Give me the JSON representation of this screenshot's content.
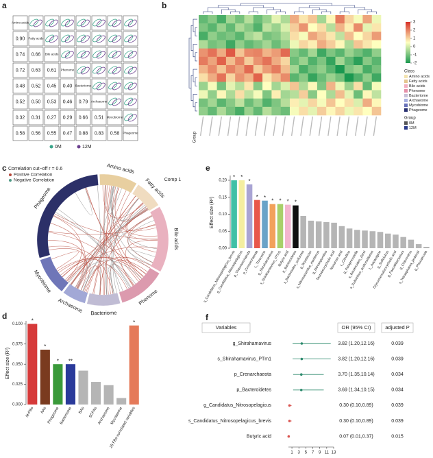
{
  "chart_data": [
    {
      "type": "corr_matrix",
      "panel": "a",
      "variables": [
        "Amino acids",
        "Fatty acids",
        "Bile acids",
        "Phenome",
        "Bacteriome",
        "Archaeome",
        "Mycobiome",
        "Phageome"
      ],
      "values": [
        [
          0.9
        ],
        [
          0.74,
          0.66
        ],
        [
          0.72,
          0.63,
          0.61
        ],
        [
          0.48,
          0.52,
          0.45,
          0.4
        ],
        [
          0.52,
          0.5,
          0.53,
          0.46,
          0.79
        ],
        [
          0.32,
          0.31,
          0.27,
          0.29,
          0.66,
          0.51
        ],
        [
          0.58,
          0.56,
          0.55,
          0.47,
          0.88,
          0.83,
          0.58
        ]
      ],
      "value_labels": [
        [
          "0.90"
        ],
        [
          "0.74",
          "0.66"
        ],
        [
          "0.72",
          "0.63",
          "0.61"
        ],
        [
          "0.48",
          "0.52",
          "0.45",
          "0.40"
        ],
        [
          "0.52",
          "0.50",
          "0.53",
          "0.46",
          "0.79"
        ],
        [
          "0.32",
          "0.31",
          "0.27",
          "0.29",
          "0.66",
          "0.51"
        ],
        [
          "0.58",
          "0.56",
          "0.55",
          "0.47",
          "0.88",
          "0.83",
          "0.58"
        ]
      ],
      "groups": [
        {
          "name": "0M",
          "color": "#3aa58a"
        },
        {
          "name": "12M",
          "color": "#6b3f8e"
        }
      ]
    },
    {
      "type": "heatmap",
      "panel": "b",
      "values": [
        [
          -1.2,
          -0.8,
          -1.5,
          -0.5,
          -1.0,
          -0.3,
          -1.1,
          -0.6,
          0.2,
          -0.4,
          1.5,
          0.8,
          1.2,
          -0.5,
          0.6,
          2.1,
          1.0,
          0.4,
          1.6,
          0.3
        ],
        [
          -0.9,
          -1.3,
          -0.6,
          -1.2,
          -0.4,
          -0.8,
          -1.4,
          -0.2,
          -0.6,
          0.1,
          1.1,
          1.8,
          0.5,
          0.9,
          -0.3,
          1.4,
          0.7,
          1.9,
          0.2,
          0.8
        ],
        [
          -1.5,
          -0.7,
          -1.1,
          -0.9,
          -1.3,
          -0.5,
          -0.2,
          -1.0,
          -0.8,
          -0.3,
          0.9,
          0.4,
          1.6,
          1.2,
          0.8,
          -0.2,
          1.3,
          0.5,
          1.0,
          1.7
        ],
        [
          -0.4,
          -1.0,
          -0.8,
          -1.6,
          -0.7,
          -1.2,
          -0.9,
          -0.5,
          -1.1,
          -0.6,
          0.3,
          1.0,
          0.7,
          1.5,
          1.1,
          0.6,
          -0.4,
          1.2,
          0.8,
          0.5
        ],
        [
          1.8,
          2.2,
          1.5,
          2.5,
          1.2,
          1.9,
          2.0,
          1.4,
          1.7,
          2.3,
          -0.8,
          -1.2,
          -0.5,
          -1.6,
          -0.9,
          -1.3,
          -0.6,
          -1.0,
          -1.4,
          -0.7
        ],
        [
          2.1,
          1.6,
          2.4,
          1.3,
          2.0,
          1.1,
          1.8,
          2.2,
          1.5,
          1.0,
          -1.1,
          -0.6,
          -1.4,
          -0.9,
          -1.7,
          -0.5,
          -1.2,
          -1.8,
          -0.8,
          -1.3
        ],
        [
          1.4,
          1.9,
          1.2,
          2.0,
          1.6,
          2.3,
          1.1,
          1.7,
          2.1,
          1.3,
          -0.5,
          -1.5,
          -1.0,
          -0.7,
          -1.3,
          -2.0,
          -0.9,
          -0.6,
          -1.5,
          -1.0
        ],
        [
          0.9,
          1.5,
          2.2,
          1.0,
          1.8,
          1.4,
          2.4,
          0.8,
          1.3,
          1.9,
          -1.3,
          -0.8,
          -1.7,
          -1.1,
          -0.6,
          -1.0,
          -2.1,
          -1.4,
          -0.7,
          -1.6
        ],
        [
          -0.6,
          0.4,
          -1.0,
          0.2,
          -0.3,
          0.8,
          -0.8,
          0.5,
          -0.5,
          0.1,
          1.2,
          -0.4,
          0.6,
          -0.9,
          1.4,
          0.3,
          -0.6,
          0.9,
          -1.2,
          0.4
        ],
        [
          0.3,
          -0.7,
          0.6,
          -0.4,
          0.9,
          -0.2,
          0.4,
          -0.9,
          0.7,
          -0.5,
          -0.3,
          1.1,
          -0.8,
          0.5,
          -0.4,
          1.3,
          0.2,
          -1.1,
          0.6,
          -0.2
        ],
        [
          -1.0,
          -0.5,
          -1.3,
          -0.8,
          -0.2,
          -1.1,
          -0.6,
          -1.4,
          -0.9,
          -0.3,
          0.7,
          0.2,
          1.0,
          0.4,
          1.2,
          0.5,
          0.9,
          0.1,
          1.5,
          0.6
        ],
        [
          -0.7,
          -1.2,
          -0.4,
          -1.0,
          -1.5,
          -0.6,
          -1.2,
          -0.3,
          -0.8,
          -1.1,
          0.4,
          0.9,
          0.2,
          1.1,
          0.6,
          1.0,
          0.3,
          0.8,
          0.5,
          1.2
        ]
      ],
      "zlim": [
        -2,
        3
      ],
      "zticks": [
        3,
        2,
        1,
        0,
        -1,
        -2
      ],
      "colors": [
        "#1a9850",
        "#ffffbf",
        "#d73027"
      ],
      "class_title": "Class",
      "classes": [
        {
          "name": "Amino acids",
          "color": "#f3e3b0"
        },
        {
          "name": "Fatty acids",
          "color": "#e5c58e"
        },
        {
          "name": "Bile acids",
          "color": "#f2aebf"
        },
        {
          "name": "Phenome",
          "color": "#e58fa8"
        },
        {
          "name": "Bacteriome",
          "color": "#c7c0d8"
        },
        {
          "name": "Archaeome",
          "color": "#a6afe0"
        },
        {
          "name": "Mycobiome",
          "color": "#6770b8"
        },
        {
          "name": "Phageome",
          "color": "#283070"
        }
      ],
      "group_title": "Group",
      "groups": [
        {
          "name": "0M",
          "color": "#555555"
        },
        {
          "name": "12M",
          "color": "#2a3a8a"
        }
      ]
    },
    {
      "type": "chord",
      "panel": "c",
      "title": "Correlation cut−off r = 0.6",
      "subtitle": "Comp 1",
      "legend": [
        {
          "name": "Positive Correlation",
          "color": "#b5473a"
        },
        {
          "name": "Negative Correlation",
          "color": "#4f9a86"
        }
      ],
      "sectors": [
        {
          "name": "Amino acids",
          "size": 8,
          "color": "#e8cfa0"
        },
        {
          "name": "Fatty acids",
          "size": 6,
          "color": "#f0dcc0"
        },
        {
          "name": "Bile acids",
          "size": 14,
          "color": "#e9b1bf"
        },
        {
          "name": "Phenome",
          "size": 10,
          "color": "#dc9aae"
        },
        {
          "name": "Bacteriome",
          "size": 7,
          "color": "#c0bcd4"
        },
        {
          "name": "Archaeome",
          "size": 5,
          "color": "#a2a8d6"
        },
        {
          "name": "Mycobiome",
          "size": 8,
          "color": "#6f76b8"
        },
        {
          "name": "Phageome",
          "size": 24,
          "color": "#2c3068"
        }
      ]
    },
    {
      "type": "bar",
      "panel": "d",
      "ylabel": "Effect size (R²)",
      "categories": [
        "M-FBs",
        "AAs",
        "Phageome",
        "Bacteriome",
        "BAs",
        "SCFAs",
        "Archaeome",
        "Mycobiome",
        "25 FBs-correlated variables"
      ],
      "values": [
        0.1,
        0.068,
        0.05,
        0.05,
        0.042,
        0.028,
        0.024,
        0.008,
        0.098
      ],
      "significance": [
        "*",
        "*",
        "*",
        "**",
        null,
        null,
        null,
        null,
        "*"
      ],
      "colors": [
        "#d63a3a",
        "#7a3b1f",
        "#3a9a3a",
        "#2a3a9a",
        "#b5b5b5",
        "#b5b5b5",
        "#b5b5b5",
        "#b5b5b5",
        "#e57a5a"
      ],
      "ylim": [
        0,
        0.102
      ],
      "yticks": [
        {
          "value": 0,
          "label": "0.000"
        },
        {
          "value": 0.025,
          "label": "0.025"
        },
        {
          "value": 0.05,
          "label": "0.050"
        },
        {
          "value": 0.075,
          "label": "0.075"
        },
        {
          "value": 0.1,
          "label": "0.100"
        }
      ]
    },
    {
      "type": "bar",
      "panel": "e",
      "ylabel": "Effect size (R²)",
      "categories": [
        "s_Candidatus_Nitrosopelagicus_brevis",
        "g_Candidatus_Nitrosopelagicus",
        "p_Thaumarchaeota",
        "p_Crenarchaeota",
        "L_Threonine",
        "g_Shirahamavirus",
        "s_Shirahamavirus_PTm1",
        "Butyric acid",
        "p_Bacteroidetes",
        "s_Bacteroides_uniformis",
        "g_Bryobacter",
        "s_Nitrosopumilus_maritimus",
        "g_Nitrosopumilus",
        "Taurodeoxycholic acid",
        "Nonanoic acid",
        "L_Citrulline",
        "g_Paraprevotella",
        "s_Bacteroides_dorei",
        "s_Sulfolobus_acidocaldarius",
        "L_Asparagine",
        "g_Sulfolobus",
        "Glycochenodeoxycholic acid",
        "g_Faecalibacterium",
        "g_Chlorovirus",
        "s_Tetrasphaera_jenkinsii",
        "g_Phocaeicola"
      ],
      "values": [
        0.2,
        0.2,
        0.188,
        0.142,
        0.14,
        0.13,
        0.13,
        0.128,
        0.126,
        0.095,
        0.081,
        0.079,
        0.077,
        0.075,
        0.065,
        0.058,
        0.054,
        0.052,
        0.05,
        0.048,
        0.043,
        0.04,
        0.033,
        0.025,
        0.012,
        0.004
      ],
      "significance": [
        "*",
        "*",
        "*",
        "*",
        "*",
        "*",
        "*",
        "*",
        "*",
        null,
        null,
        null,
        null,
        null,
        null,
        null,
        null,
        null,
        null,
        null,
        null,
        null,
        null,
        null,
        null,
        null
      ],
      "colors": [
        "#3fc0a6",
        "#f4eea0",
        "#a9a4d4",
        "#e8574a",
        "#6aa3c8",
        "#f2a15b",
        "#a8d06a",
        "#f3b6cf",
        "#111111",
        "#b5b5b5",
        "#b5b5b5",
        "#b5b5b5",
        "#b5b5b5",
        "#b5b5b5",
        "#b5b5b5",
        "#b5b5b5",
        "#b5b5b5",
        "#b5b5b5",
        "#b5b5b5",
        "#b5b5b5",
        "#b5b5b5",
        "#b5b5b5",
        "#b5b5b5",
        "#b5b5b5",
        "#b5b5b5",
        "#b5b5b5"
      ],
      "ylim": [
        0,
        0.21
      ],
      "yticks": [
        {
          "value": 0,
          "label": "0.00"
        },
        {
          "value": 0.05,
          "label": "0.05"
        },
        {
          "value": 0.1,
          "label": "0.10"
        },
        {
          "value": 0.15,
          "label": "0.15"
        },
        {
          "value": 0.2,
          "label": "0.20"
        }
      ]
    },
    {
      "type": "forest",
      "panel": "f",
      "headers": [
        "Variables",
        "OR (95% CI)",
        "adjusted P"
      ],
      "variables": [
        "g_Shirahamavirus",
        "s_Shirahamavirus_PTm1",
        "p_Crenarchaeota",
        "p_Bacteroidetes",
        "g_Candidatus_Nitrosopelagicus",
        "s_Candidatus_Nitrosopelagicus_brevis",
        "Butyric acid"
      ],
      "or": [
        3.82,
        3.82,
        3.7,
        3.69,
        0.3,
        0.3,
        0.07
      ],
      "lower": [
        1.2,
        1.2,
        1.35,
        1.34,
        0.1,
        0.1,
        0.01
      ],
      "upper": [
        12.16,
        12.16,
        10.14,
        10.15,
        0.89,
        0.89,
        0.37
      ],
      "ci_labels": [
        "3.82 (1.20,12.16)",
        "3.82 (1.20,12.16)",
        "3.70 (1.35,10.14)",
        "3.69 (1.34,10.15)",
        "0.30 (0.10,0.89)",
        "0.30 (0.10,0.89)",
        "0.07 (0.01,0.37)"
      ],
      "adjusted_p": [
        0.039,
        0.039,
        0.034,
        0.034,
        0.039,
        0.039,
        0.015
      ],
      "colors": [
        "#2e8b6e",
        "#2e8b6e",
        "#2e8b6e",
        "#2e8b6e",
        "#d9534f",
        "#d9534f",
        "#d9534f"
      ],
      "xlim": [
        0,
        13
      ],
      "xticks": [
        1,
        3,
        5,
        7,
        9,
        11,
        13
      ]
    }
  ]
}
